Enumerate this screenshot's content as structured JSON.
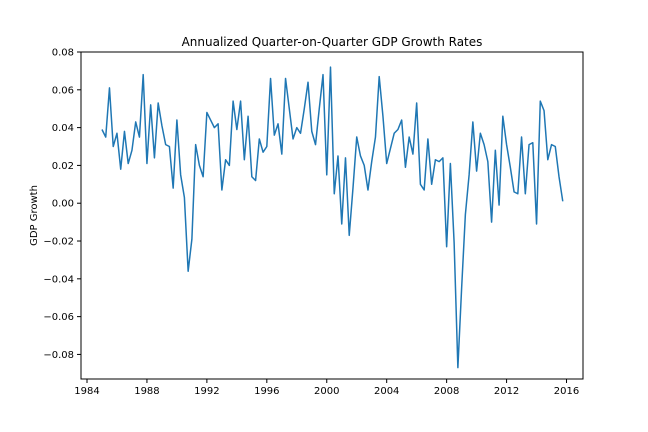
{
  "chart_data": {
    "type": "line",
    "title": "Annualized Quarter-on-Quarter GDP Growth Rates",
    "xlabel": "",
    "ylabel": "GDP Growth",
    "xlim": [
      1983.6,
      2017.1
    ],
    "ylim": [
      -0.093,
      0.08
    ],
    "x_ticks": [
      1984,
      1988,
      1992,
      1996,
      2000,
      2004,
      2008,
      2012,
      2016
    ],
    "y_ticks": [
      -0.08,
      -0.06,
      -0.04,
      -0.02,
      0.0,
      0.02,
      0.04,
      0.06,
      0.08
    ],
    "grid": false,
    "line_color": "#1f77b4",
    "series": [
      {
        "x": [
          1985.0,
          1985.25,
          1985.5,
          1985.75,
          1986.0,
          1986.25,
          1986.5,
          1986.75,
          1987.0,
          1987.25,
          1987.5,
          1987.75,
          1988.0,
          1988.25,
          1988.5,
          1988.75,
          1989.0,
          1989.25,
          1989.5,
          1989.75,
          1990.0,
          1990.25,
          1990.5,
          1990.75,
          1991.0,
          1991.25,
          1991.5,
          1991.75,
          1992.0,
          1992.25,
          1992.5,
          1992.75,
          1993.0,
          1993.25,
          1993.5,
          1993.75,
          1994.0,
          1994.25,
          1994.5,
          1994.75,
          1995.0,
          1995.25,
          1995.5,
          1995.75,
          1996.0,
          1996.25,
          1996.5,
          1996.75,
          1997.0,
          1997.25,
          1997.5,
          1997.75,
          1998.0,
          1998.25,
          1998.5,
          1998.75,
          1999.0,
          1999.25,
          1999.5,
          1999.75,
          2000.0,
          2000.25,
          2000.5,
          2000.75,
          2001.0,
          2001.25,
          2001.5,
          2001.75,
          2002.0,
          2002.25,
          2002.5,
          2002.75,
          2003.0,
          2003.25,
          2003.5,
          2003.75,
          2004.0,
          2004.25,
          2004.5,
          2004.75,
          2005.0,
          2005.25,
          2005.5,
          2005.75,
          2006.0,
          2006.25,
          2006.5,
          2006.75,
          2007.0,
          2007.25,
          2007.5,
          2007.75,
          2008.0,
          2008.25,
          2008.5,
          2008.75,
          2009.0,
          2009.25,
          2009.5,
          2009.75,
          2010.0,
          2010.25,
          2010.5,
          2010.75,
          2011.0,
          2011.25,
          2011.5,
          2011.75,
          2012.0,
          2012.25,
          2012.5,
          2012.75,
          2013.0,
          2013.25,
          2013.5,
          2013.75,
          2014.0,
          2014.25,
          2014.5,
          2014.75,
          2015.0,
          2015.25,
          2015.5,
          2015.75
        ],
        "values": [
          0.039,
          0.035,
          0.061,
          0.03,
          0.037,
          0.018,
          0.038,
          0.021,
          0.028,
          0.043,
          0.035,
          0.068,
          0.021,
          0.052,
          0.024,
          0.053,
          0.041,
          0.031,
          0.03,
          0.008,
          0.044,
          0.015,
          0.003,
          -0.036,
          -0.019,
          0.031,
          0.02,
          0.014,
          0.048,
          0.044,
          0.04,
          0.042,
          0.007,
          0.023,
          0.02,
          0.054,
          0.039,
          0.054,
          0.023,
          0.046,
          0.014,
          0.012,
          0.034,
          0.027,
          0.03,
          0.066,
          0.036,
          0.042,
          0.026,
          0.066,
          0.05,
          0.034,
          0.04,
          0.037,
          0.05,
          0.064,
          0.038,
          0.031,
          0.05,
          0.068,
          0.015,
          0.072,
          0.005,
          0.025,
          -0.011,
          0.024,
          -0.017,
          0.008,
          0.035,
          0.025,
          0.02,
          0.007,
          0.022,
          0.035,
          0.067,
          0.046,
          0.021,
          0.029,
          0.037,
          0.039,
          0.044,
          0.019,
          0.035,
          0.026,
          0.053,
          0.01,
          0.007,
          0.034,
          0.01,
          0.023,
          0.022,
          0.024,
          -0.023,
          0.021,
          -0.021,
          -0.087,
          -0.045,
          -0.006,
          0.015,
          0.043,
          0.017,
          0.037,
          0.031,
          0.022,
          -0.01,
          0.028,
          -0.001,
          0.046,
          0.031,
          0.019,
          0.006,
          0.005,
          0.035,
          0.005,
          0.031,
          0.032,
          -0.011,
          0.054,
          0.049,
          0.023,
          0.031,
          0.03,
          0.014,
          0.001
        ]
      }
    ]
  }
}
